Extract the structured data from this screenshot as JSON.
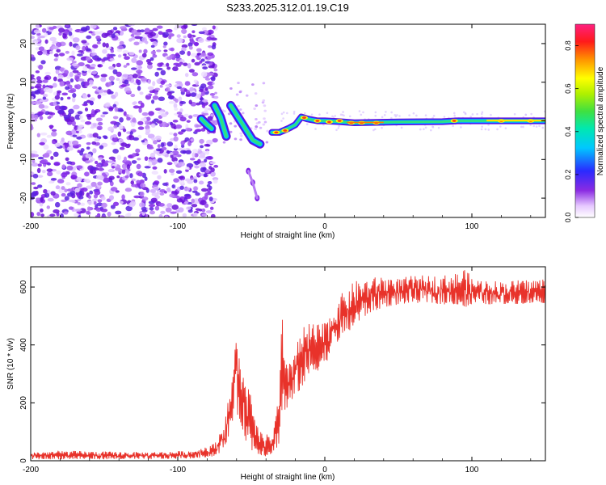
{
  "title": "S233.2025.312.01.19.C19",
  "chart_data": [
    {
      "type": "heatmap",
      "xlabel": "Height of straight line (km)",
      "ylabel": "Frequency (Hz)",
      "xlim": [
        -200,
        150
      ],
      "ylim": [
        -25,
        25
      ],
      "x_ticks": [
        -200,
        -100,
        0,
        100
      ],
      "x_tick_labels": [
        "-200",
        "-100",
        "0",
        "100"
      ],
      "y_ticks": [
        -20,
        -10,
        0,
        10,
        20
      ],
      "y_tick_labels": [
        "-20",
        "-10",
        "0",
        "10",
        "20"
      ],
      "colorbar": {
        "label": "Normalized spectral amplitude",
        "range": [
          0,
          0.9
        ],
        "ticks": [
          0,
          0.2,
          0.4,
          0.6,
          0.8
        ],
        "tick_labels": [
          "0.0",
          "0.2",
          "0.4",
          "0.6",
          "0.8"
        ],
        "colormap": "rainbow (violet-blue-cyan-green-yellow-red-magenta)"
      },
      "features": [
        {
          "name": "noise region",
          "x_range": [
            -200,
            -78
          ],
          "freq_range": [
            -25,
            25
          ],
          "amplitude": "low (violet)"
        },
        {
          "name": "signal trace segment 1",
          "points": [
            [
              -84,
              0.5
            ],
            [
              -80,
              -1
            ],
            [
              -77,
              -2
            ]
          ]
        },
        {
          "name": "signal trace segment 2",
          "points": [
            [
              -75,
              4
            ],
            [
              -71,
              1
            ],
            [
              -67,
              -4
            ]
          ]
        },
        {
          "name": "signal trace segment 3",
          "points": [
            [
              -64,
              4
            ],
            [
              -59,
              1
            ],
            [
              -54,
              -2
            ],
            [
              -49,
              -5
            ],
            [
              -44,
              -6
            ]
          ]
        },
        {
          "name": "faint diagonal branch",
          "points": [
            [
              -52,
              -13
            ],
            [
              -49,
              -16
            ],
            [
              -46,
              -20
            ]
          ]
        },
        {
          "name": "signal trace segment 4",
          "points": [
            [
              -36,
              -3
            ],
            [
              -31,
              -3
            ],
            [
              -25,
              -2
            ],
            [
              -20,
              -1
            ],
            [
              -16,
              1
            ],
            [
              -12,
              0.5
            ],
            [
              -5,
              0
            ],
            [
              0,
              0
            ],
            [
              10,
              -0.2
            ],
            [
              20,
              -0.5
            ],
            [
              50,
              -0.3
            ],
            [
              80,
              -0.2
            ],
            [
              90,
              0
            ],
            [
              100,
              0
            ],
            [
              120,
              0
            ],
            [
              150,
              0
            ]
          ]
        }
      ]
    },
    {
      "type": "line",
      "xlabel": "Height of straight line (km)",
      "ylabel": "SNR (10 * v/v)",
      "xlim": [
        -200,
        150
      ],
      "ylim": [
        0,
        670
      ],
      "x_ticks": [
        -200,
        -100,
        0,
        100
      ],
      "x_tick_labels": [
        "-200",
        "-100",
        "0",
        "100"
      ],
      "y_ticks": [
        0,
        200,
        400,
        600
      ],
      "y_tick_labels": [
        "0",
        "200",
        "400",
        "600"
      ],
      "series": [
        {
          "name": "SNR",
          "color": "#e8322a",
          "envelope": {
            "x": [
              -200,
              -180,
              -150,
              -120,
              -90,
              -75,
              -68,
              -64,
              -61,
              -59,
              -56,
              -52,
              -48,
              -44,
              -40,
              -35,
              -31,
              -29,
              -27,
              -25,
              -22,
              -20,
              -15,
              -10,
              -5,
              0,
              5,
              10,
              20,
              30,
              40,
              50,
              60,
              70,
              80,
              90,
              95,
              100,
              120,
              150
            ],
            "low": [
              5,
              5,
              5,
              5,
              8,
              15,
              40,
              110,
              180,
              150,
              110,
              40,
              30,
              20,
              15,
              25,
              60,
              150,
              170,
              180,
              200,
              220,
              260,
              290,
              310,
              330,
              380,
              420,
              460,
              510,
              530,
              540,
              545,
              545,
              540,
              540,
              520,
              540,
              540,
              545
            ],
            "high": [
              30,
              35,
              32,
              30,
              35,
              60,
              140,
              260,
              400,
              460,
              300,
              280,
              150,
              100,
              90,
              100,
              250,
              520,
              320,
              350,
              380,
              400,
              460,
              480,
              470,
              480,
              520,
              570,
              620,
              630,
              640,
              630,
              640,
              640,
              640,
              650,
              670,
              630,
              620,
              630
            ]
          }
        }
      ]
    }
  ]
}
